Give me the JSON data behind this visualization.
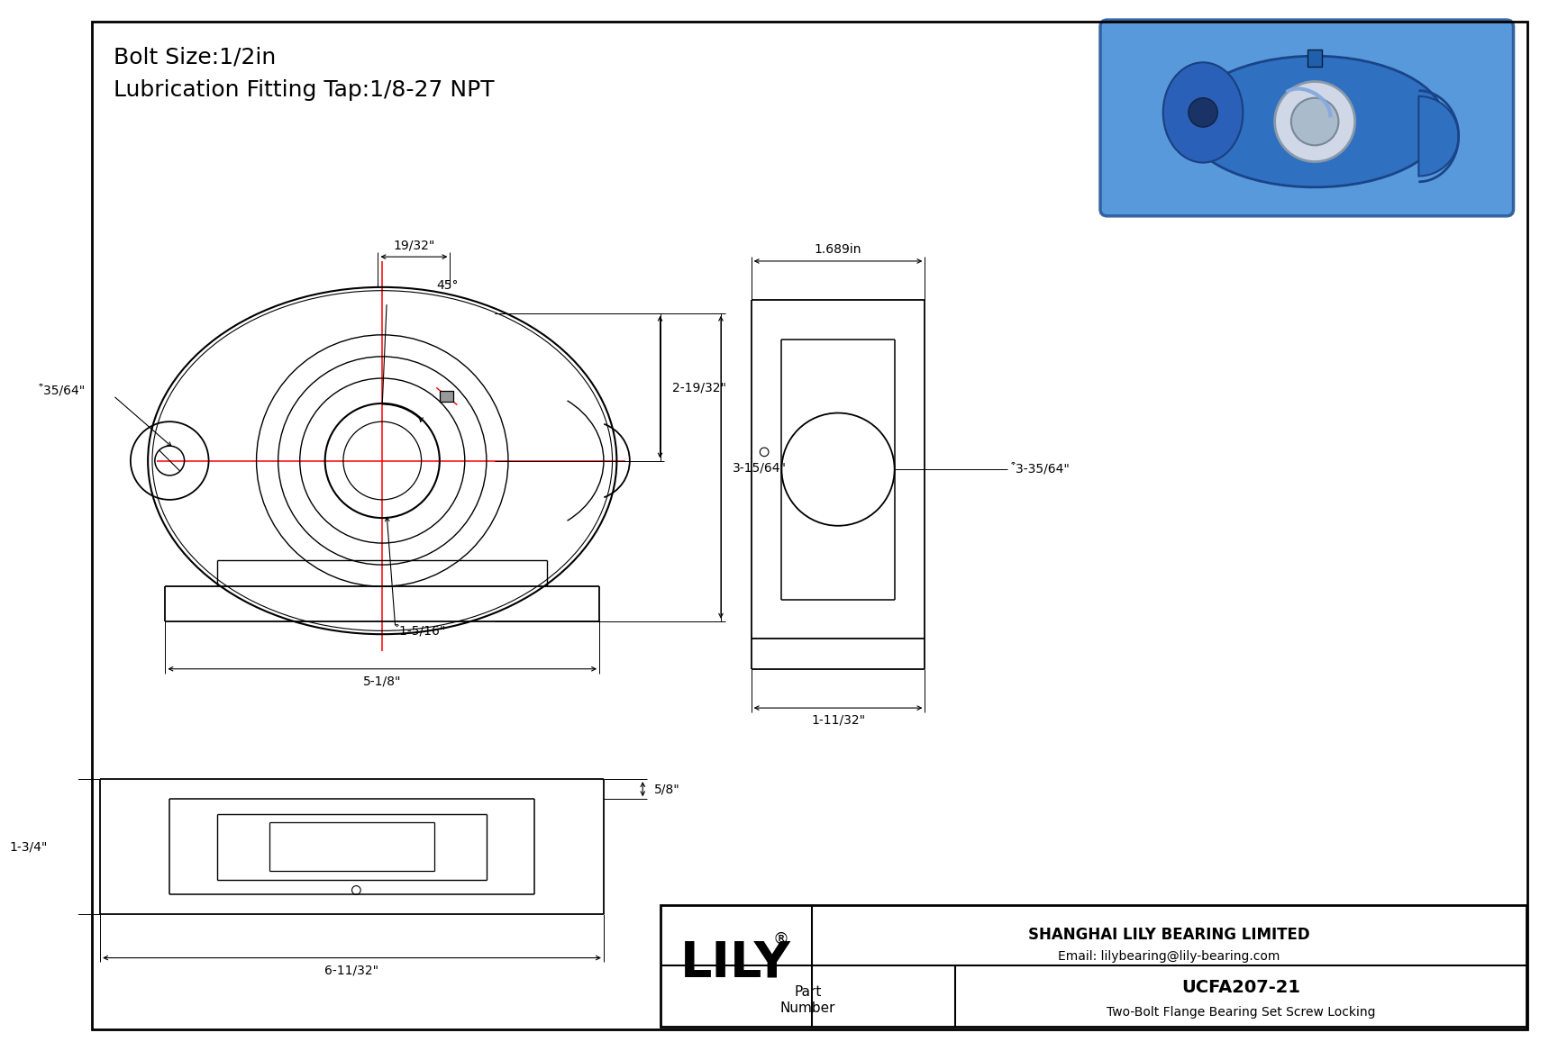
{
  "title_line1": "Bolt Size:1/2in",
  "title_line2": "Lubrication Fitting Tap:1/8-27 NPT",
  "company": "SHANGHAI LILY BEARING LIMITED",
  "email": "Email: lilybearing@lily-bearing.com",
  "part_label": "Part\nNumber",
  "part_number": "UCFA207-21",
  "part_desc": "Two-Bolt Flange Bearing Set Screw Locking",
  "lily_text": "LILY",
  "lily_reg": "®",
  "bg_color": "#ffffff",
  "red_color": "#ff0000",
  "border_color": "#000000",
  "font_color": "#000000",
  "dims": {
    "bolt_hole_dia": "͒35/64\"",
    "bore_dia": "͒1-5/16\"",
    "width_top": "19/32\"",
    "dim_A": "2-19/32\"",
    "dim_B": "3-15/64\"",
    "overall_width": "5-1/8\"",
    "side_width": "1.689in",
    "side_height": "1-11/32\"",
    "side_bore": "͒3-35/64\"",
    "angle": "45°",
    "bot_height": "1-3/4\"",
    "bot_width": "6-11/32\"",
    "bot_top_dim": "5/8\""
  }
}
